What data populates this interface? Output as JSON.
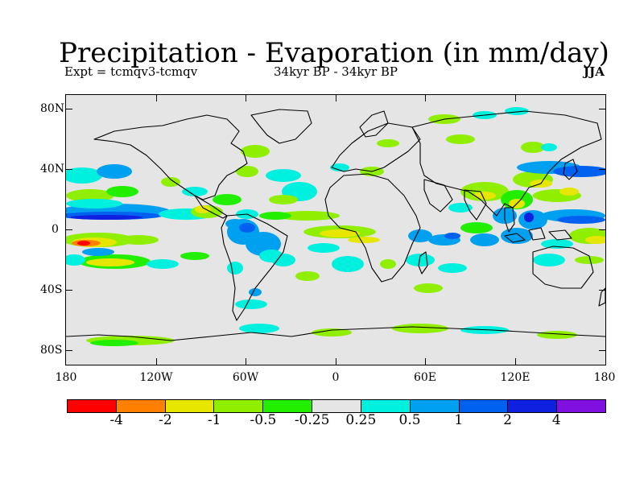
{
  "header": {
    "title": "Precipitation - Evaporation (in mm/day)",
    "expt": "Expt = tcmqv3-tcmqv",
    "period": "34kyr BP - 34kyr BP",
    "season": "JJA"
  },
  "map": {
    "projection": "equirectangular",
    "background_color": "#e5e5e5",
    "coastline_color": "#000000",
    "lat_ticks": [
      "80N",
      "40N",
      "0",
      "40S",
      "80S"
    ],
    "lon_ticks": [
      "180",
      "120W",
      "60W",
      "0",
      "60E",
      "120E",
      "180"
    ]
  },
  "colorbar": {
    "colors": [
      "#ff0000",
      "#ff8000",
      "#e6e600",
      "#90ee00",
      "#22ee00",
      "#e5e5e5",
      "#00f0e0",
      "#00a0f0",
      "#0060f0",
      "#1020e0",
      "#8010e0"
    ],
    "labels": [
      "-4",
      "-2",
      "-1",
      "-0.5",
      "-0.25",
      "0.25",
      "0.5",
      "1",
      "2",
      "4"
    ]
  }
}
